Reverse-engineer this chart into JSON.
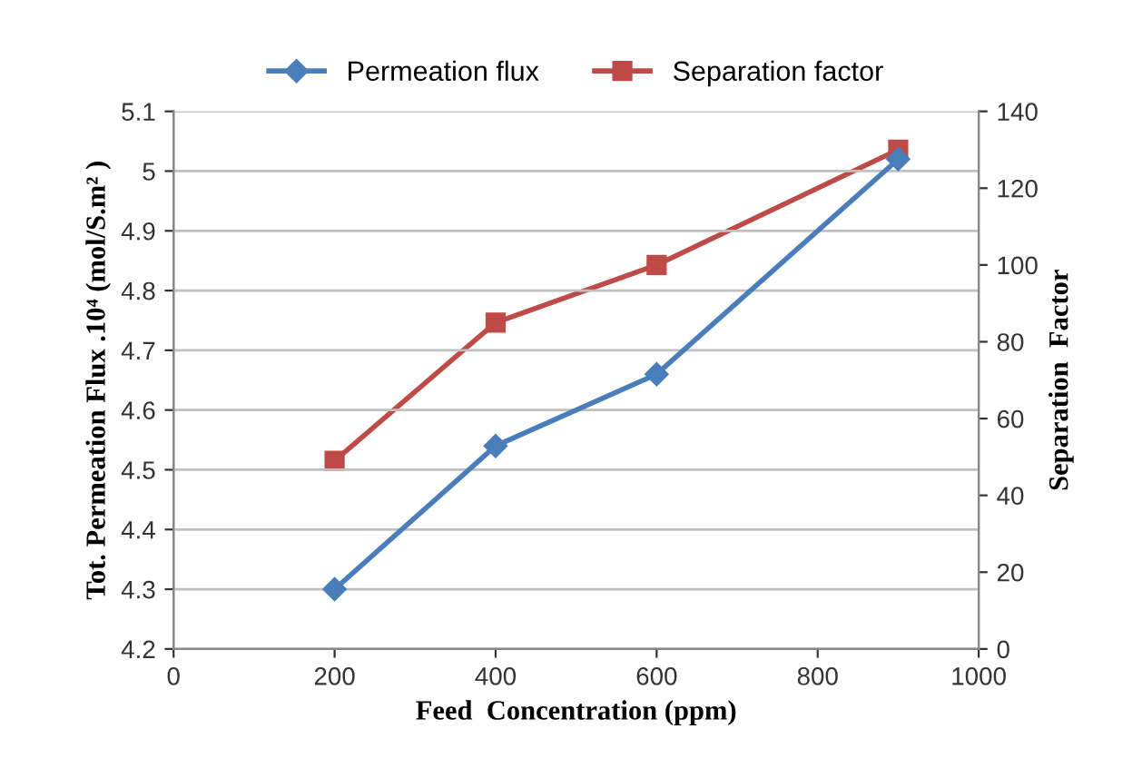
{
  "chart_data": {
    "type": "line",
    "xlabel": "Feed  Concentration (ppm)",
    "ylabel": "Tot. Permeation Flux .10⁴ (mol/S.m² )",
    "y2label": "Separation  Factor",
    "x": [
      200,
      400,
      600,
      900
    ],
    "series": [
      {
        "name": "Permeation flux",
        "color": "#4a7ebb",
        "values": [
          4.3,
          4.54,
          4.66,
          5.02
        ],
        "marker": "diamond"
      },
      {
        "name": "Separation factor",
        "color": "#be4b48",
        "values": [
          49,
          85,
          100,
          130
        ],
        "marker": "square",
        "axis": "y2"
      }
    ],
    "xlim": [
      0,
      1000
    ],
    "xticks": [
      0,
      200,
      400,
      600,
      800,
      1000
    ],
    "ylim": [
      4.2,
      5.1
    ],
    "yticks": [
      4.2,
      4.3,
      4.4,
      4.5,
      4.6,
      4.7,
      4.8,
      4.9,
      5,
      5.1
    ],
    "y2lim": [
      0,
      140
    ],
    "y2ticks": [
      0,
      20,
      40,
      60,
      80,
      100,
      120,
      140
    ],
    "grid": "y",
    "legend": "top",
    "line_style": "solid"
  }
}
